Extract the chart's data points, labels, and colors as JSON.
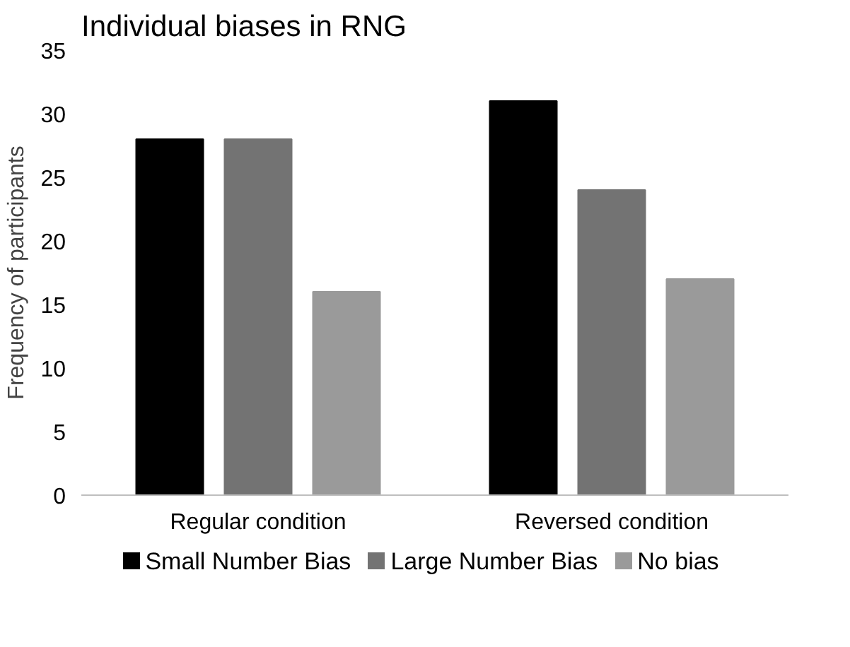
{
  "chart_data": {
    "type": "bar",
    "title": "Individual biases in RNG",
    "ylabel": "Frequency of participants",
    "categories": [
      "Regular condition",
      "Reversed condition"
    ],
    "series": [
      {
        "name": "Small Number Bias",
        "color": "#000000",
        "values": [
          28,
          31
        ]
      },
      {
        "name": "Large Number Bias",
        "color": "#737373",
        "values": [
          28,
          24
        ]
      },
      {
        "name": "No bias",
        "color": "#9a9a9a",
        "values": [
          16,
          17
        ]
      }
    ],
    "ylim": [
      0,
      35
    ],
    "yticks": [
      0,
      5,
      10,
      15,
      20,
      25,
      30,
      35
    ],
    "legend": "bottom"
  }
}
